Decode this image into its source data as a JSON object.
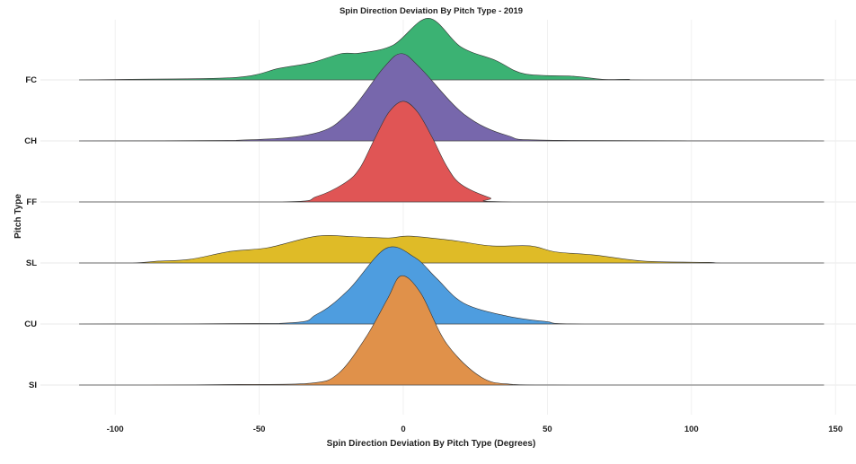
{
  "chart_data": {
    "type": "ridgeline",
    "title": "Spin Direction Deviation By Pitch Type - 2019",
    "xlabel": "Spin Direction Deviation By Pitch Type (Degrees)",
    "ylabel": "Pitch Type",
    "xlim": [
      -112.5,
      146
    ],
    "xticks": [
      -100,
      -50,
      0,
      50,
      100,
      150
    ],
    "xtick_labels": [
      "-100",
      "-50",
      "0",
      "50",
      "100",
      "150"
    ],
    "grid": true,
    "height_unit": "fraction of row spacing",
    "series": [
      {
        "name": "FC",
        "color": "#3bb273",
        "points": [
          [
            -95,
            0.01
          ],
          [
            -58,
            0.04
          ],
          [
            -43,
            0.19
          ],
          [
            -32,
            0.28
          ],
          [
            -21.5,
            0.43
          ],
          [
            -15,
            0.44
          ],
          [
            -3.5,
            0.57
          ],
          [
            8.7,
            1.01
          ],
          [
            20,
            0.54
          ],
          [
            32,
            0.32
          ],
          [
            42,
            0.1
          ],
          [
            59,
            0.06
          ],
          [
            69,
            0.01
          ],
          [
            78,
            0.01
          ],
          [
            84,
            0
          ]
        ]
      },
      {
        "name": "CH",
        "color": "#7767ac",
        "points": [
          [
            -58,
            0.01
          ],
          [
            -31,
            0.12
          ],
          [
            -19,
            0.46
          ],
          [
            -7,
            1.19
          ],
          [
            -0.7,
            1.43
          ],
          [
            6,
            1.19
          ],
          [
            21,
            0.44
          ],
          [
            36,
            0.09
          ],
          [
            53,
            0.01
          ]
        ]
      },
      {
        "name": "FF",
        "color": "#e05555",
        "points": [
          [
            -42,
            0
          ],
          [
            -30,
            0.09
          ],
          [
            -20,
            0.32
          ],
          [
            -15,
            0.56
          ],
          [
            -10,
            1.03
          ],
          [
            -5,
            1.47
          ],
          [
            0,
            1.65
          ],
          [
            5,
            1.47
          ],
          [
            10,
            1.06
          ],
          [
            15,
            0.59
          ],
          [
            20,
            0.29
          ],
          [
            30,
            0.07
          ],
          [
            38,
            0
          ]
        ]
      },
      {
        "name": "SL",
        "color": "#dfbb27",
        "points": [
          [
            -94,
            0
          ],
          [
            -85,
            0.03
          ],
          [
            -74,
            0.06
          ],
          [
            -60,
            0.19
          ],
          [
            -47,
            0.25
          ],
          [
            -30,
            0.44
          ],
          [
            -17,
            0.43
          ],
          [
            -5,
            0.41
          ],
          [
            2,
            0.44
          ],
          [
            17,
            0.37
          ],
          [
            30.5,
            0.28
          ],
          [
            44,
            0.28
          ],
          [
            53,
            0.18
          ],
          [
            66.5,
            0.13
          ],
          [
            83.5,
            0.03
          ],
          [
            106,
            0.01
          ],
          [
            112,
            0
          ]
        ]
      },
      {
        "name": "CU",
        "color": "#4e9ddf",
        "points": [
          [
            -43,
            0.01
          ],
          [
            -30,
            0.16
          ],
          [
            -19,
            0.56
          ],
          [
            -6,
            1.24
          ],
          [
            4,
            1.09
          ],
          [
            11.5,
            0.75
          ],
          [
            21,
            0.34
          ],
          [
            36,
            0.13
          ],
          [
            49.5,
            0.04
          ],
          [
            63,
            0
          ]
        ]
      },
      {
        "name": "SI",
        "color": "#e0914a",
        "points": [
          [
            -88,
            0
          ],
          [
            -57,
            0.01
          ],
          [
            -32,
            0.03
          ],
          [
            -22.5,
            0.19
          ],
          [
            -13,
            0.78
          ],
          [
            -5.5,
            1.41
          ],
          [
            -0.7,
            1.79
          ],
          [
            6,
            1.51
          ],
          [
            15,
            0.68
          ],
          [
            27,
            0.13
          ],
          [
            38,
            0.01
          ],
          [
            58,
            0
          ]
        ]
      }
    ]
  }
}
